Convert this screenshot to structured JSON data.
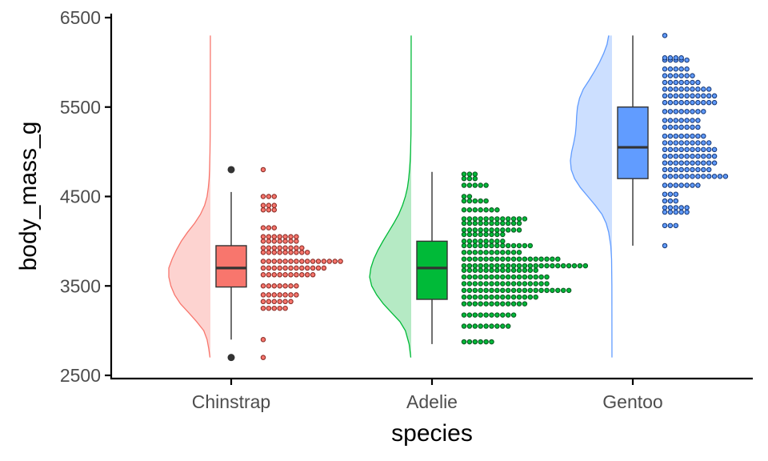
{
  "chart_data": {
    "type": "raincloud",
    "xlabel": "species",
    "ylabel": "body_mass_g",
    "ylim": [
      2500,
      6500
    ],
    "yticks": [
      2500,
      3500,
      4500,
      5500,
      6500
    ],
    "grid": false,
    "legend": "none",
    "binwidth": 75,
    "categories": [
      "Chinstrap",
      "Adelie",
      "Gentoo"
    ],
    "series": [
      {
        "name": "Chinstrap",
        "fill": "#F8766D",
        "cloud_fill": "#FDD3D0",
        "dark": "#8B2E28",
        "box": {
          "q1": 3488,
          "median": 3700,
          "q3": 3950,
          "lower_whisker": 2900,
          "upper_whisker": 4550,
          "outliers": [
            2700,
            4800
          ]
        },
        "density": [
          [
            2700,
            0.01
          ],
          [
            2800,
            0.04
          ],
          [
            2900,
            0.08
          ],
          [
            3000,
            0.16
          ],
          [
            3100,
            0.33
          ],
          [
            3200,
            0.52
          ],
          [
            3300,
            0.72
          ],
          [
            3400,
            0.86
          ],
          [
            3500,
            0.95
          ],
          [
            3600,
            1.0
          ],
          [
            3700,
            1.0
          ],
          [
            3800,
            0.92
          ],
          [
            3900,
            0.82
          ],
          [
            4000,
            0.7
          ],
          [
            4100,
            0.55
          ],
          [
            4200,
            0.38
          ],
          [
            4300,
            0.24
          ],
          [
            4400,
            0.14
          ],
          [
            4500,
            0.08
          ],
          [
            4600,
            0.05
          ],
          [
            4700,
            0.03
          ],
          [
            4800,
            0.02
          ],
          [
            4900,
            0.015
          ],
          [
            5000,
            0.01
          ],
          [
            5200,
            0.005
          ],
          [
            5600,
            0.002
          ],
          [
            6300,
            0.001
          ]
        ],
        "dots": [
          [
            2700,
            1
          ],
          [
            2900,
            1
          ],
          [
            3250,
            5
          ],
          [
            3325,
            6
          ],
          [
            3400,
            7
          ],
          [
            3500,
            7
          ],
          [
            3625,
            10
          ],
          [
            3700,
            12
          ],
          [
            3775,
            15
          ],
          [
            3875,
            9
          ],
          [
            3925,
            8
          ],
          [
            4000,
            7
          ],
          [
            4050,
            7
          ],
          [
            4150,
            3
          ],
          [
            4350,
            3
          ],
          [
            4400,
            3
          ],
          [
            4500,
            3
          ],
          [
            4800,
            1
          ]
        ]
      },
      {
        "name": "Adelie",
        "fill": "#00BA38",
        "cloud_fill": "#B5EAC4",
        "dark": "#0B5A22",
        "box": {
          "q1": 3350,
          "median": 3700,
          "q3": 4000,
          "lower_whisker": 2850,
          "upper_whisker": 4775,
          "outliers": []
        },
        "density": [
          [
            2700,
            0.01
          ],
          [
            2850,
            0.05
          ],
          [
            3000,
            0.14
          ],
          [
            3100,
            0.27
          ],
          [
            3200,
            0.47
          ],
          [
            3300,
            0.67
          ],
          [
            3400,
            0.83
          ],
          [
            3500,
            0.95
          ],
          [
            3600,
            1.0
          ],
          [
            3700,
            0.97
          ],
          [
            3800,
            0.9
          ],
          [
            3900,
            0.8
          ],
          [
            4000,
            0.68
          ],
          [
            4100,
            0.55
          ],
          [
            4200,
            0.42
          ],
          [
            4300,
            0.3
          ],
          [
            4400,
            0.21
          ],
          [
            4500,
            0.14
          ],
          [
            4600,
            0.09
          ],
          [
            4700,
            0.06
          ],
          [
            4800,
            0.04
          ],
          [
            4900,
            0.025
          ],
          [
            5000,
            0.015
          ],
          [
            5200,
            0.006
          ],
          [
            5600,
            0.002
          ],
          [
            6300,
            0.001
          ]
        ],
        "dots": [
          [
            2875,
            6
          ],
          [
            3050,
            9
          ],
          [
            3175,
            10
          ],
          [
            3300,
            12
          ],
          [
            3375,
            14
          ],
          [
            3450,
            20
          ],
          [
            3525,
            16
          ],
          [
            3600,
            16
          ],
          [
            3675,
            14
          ],
          [
            3725,
            23
          ],
          [
            3800,
            18
          ],
          [
            3875,
            11
          ],
          [
            3950,
            13
          ],
          [
            4000,
            8
          ],
          [
            4075,
            8
          ],
          [
            4125,
            11
          ],
          [
            4200,
            11
          ],
          [
            4250,
            12
          ],
          [
            4350,
            7
          ],
          [
            4450,
            5
          ],
          [
            4500,
            2
          ],
          [
            4625,
            5
          ],
          [
            4700,
            3
          ],
          [
            4750,
            3
          ]
        ]
      },
      {
        "name": "Gentoo",
        "fill": "#619CFF",
        "cloud_fill": "#CCDFFF",
        "dark": "#1A3C7A",
        "box": {
          "q1": 4700,
          "median": 5050,
          "q3": 5500,
          "lower_whisker": 3950,
          "upper_whisker": 6300,
          "outliers": []
        },
        "density": [
          [
            2700,
            0.001
          ],
          [
            3500,
            0.003
          ],
          [
            3800,
            0.01
          ],
          [
            3950,
            0.03
          ],
          [
            4100,
            0.08
          ],
          [
            4200,
            0.14
          ],
          [
            4300,
            0.24
          ],
          [
            4400,
            0.4
          ],
          [
            4500,
            0.58
          ],
          [
            4600,
            0.76
          ],
          [
            4700,
            0.9
          ],
          [
            4800,
            0.98
          ],
          [
            4900,
            1.0
          ],
          [
            5000,
            0.97
          ],
          [
            5100,
            0.92
          ],
          [
            5200,
            0.88
          ],
          [
            5300,
            0.86
          ],
          [
            5400,
            0.85
          ],
          [
            5500,
            0.83
          ],
          [
            5600,
            0.78
          ],
          [
            5700,
            0.69
          ],
          [
            5800,
            0.55
          ],
          [
            5900,
            0.42
          ],
          [
            6000,
            0.3
          ],
          [
            6100,
            0.2
          ],
          [
            6200,
            0.12
          ],
          [
            6300,
            0.08
          ]
        ],
        "dots": [
          [
            3950,
            1
          ],
          [
            4175,
            3
          ],
          [
            4325,
            5
          ],
          [
            4375,
            5
          ],
          [
            4450,
            3
          ],
          [
            4525,
            3
          ],
          [
            4625,
            7
          ],
          [
            4725,
            12
          ],
          [
            4800,
            9
          ],
          [
            4875,
            10
          ],
          [
            4950,
            10
          ],
          [
            5025,
            10
          ],
          [
            5100,
            9
          ],
          [
            5175,
            8
          ],
          [
            5275,
            7
          ],
          [
            5350,
            7
          ],
          [
            5450,
            8
          ],
          [
            5550,
            10
          ],
          [
            5625,
            10
          ],
          [
            5700,
            9
          ],
          [
            5775,
            7
          ],
          [
            5850,
            6
          ],
          [
            5925,
            5
          ],
          [
            6025,
            5
          ],
          [
            6050,
            4
          ],
          [
            6300,
            1
          ]
        ]
      }
    ]
  }
}
